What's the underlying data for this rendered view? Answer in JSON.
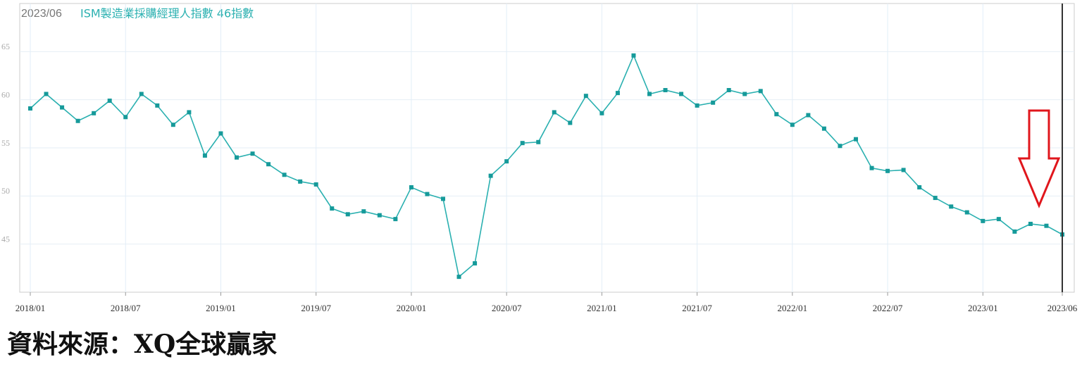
{
  "chart_data": {
    "type": "line",
    "header_date": "2023/06",
    "title": "ISM製造業採購經理人指數 46指數",
    "source": "資料來源：XQ全球贏家",
    "categories": [
      "2018/01",
      null,
      null,
      null,
      null,
      null,
      "2018/07",
      null,
      null,
      null,
      null,
      null,
      "2019/01",
      null,
      null,
      null,
      null,
      null,
      "2019/07",
      null,
      null,
      null,
      null,
      null,
      "2020/01",
      null,
      null,
      null,
      null,
      null,
      "2020/07",
      null,
      null,
      null,
      null,
      null,
      "2021/01",
      null,
      null,
      null,
      null,
      null,
      "2021/07",
      null,
      null,
      null,
      null,
      null,
      "2022/01",
      null,
      null,
      null,
      null,
      null,
      "2022/07",
      null,
      null,
      null,
      null,
      null,
      "2023/01",
      null,
      null,
      null,
      null,
      "2023/06"
    ],
    "series": [
      {
        "color": "#2ab0b0",
        "values": [
          59.1,
          60.6,
          59.2,
          57.8,
          58.6,
          59.9,
          58.2,
          60.6,
          59.4,
          57.4,
          58.7,
          54.2,
          56.5,
          54.0,
          54.4,
          53.3,
          52.2,
          51.5,
          51.2,
          48.7,
          48.1,
          48.4,
          48.0,
          47.6,
          50.9,
          50.2,
          49.7,
          41.6,
          43.0,
          52.1,
          53.6,
          55.5,
          55.6,
          58.7,
          57.6,
          60.4,
          58.6,
          60.7,
          64.6,
          60.6,
          61.0,
          60.6,
          59.4,
          59.7,
          61.0,
          60.6,
          60.9,
          58.5,
          57.4,
          58.4,
          57.0,
          55.2,
          55.9,
          52.9,
          52.6,
          52.7,
          50.9,
          49.8,
          48.9,
          48.3,
          47.4,
          47.6,
          46.3,
          47.1,
          46.9,
          46.0
        ]
      }
    ],
    "ylim": [
      40,
      70
    ],
    "yticks": [
      45,
      50,
      55,
      60,
      65
    ],
    "grid": true
  }
}
